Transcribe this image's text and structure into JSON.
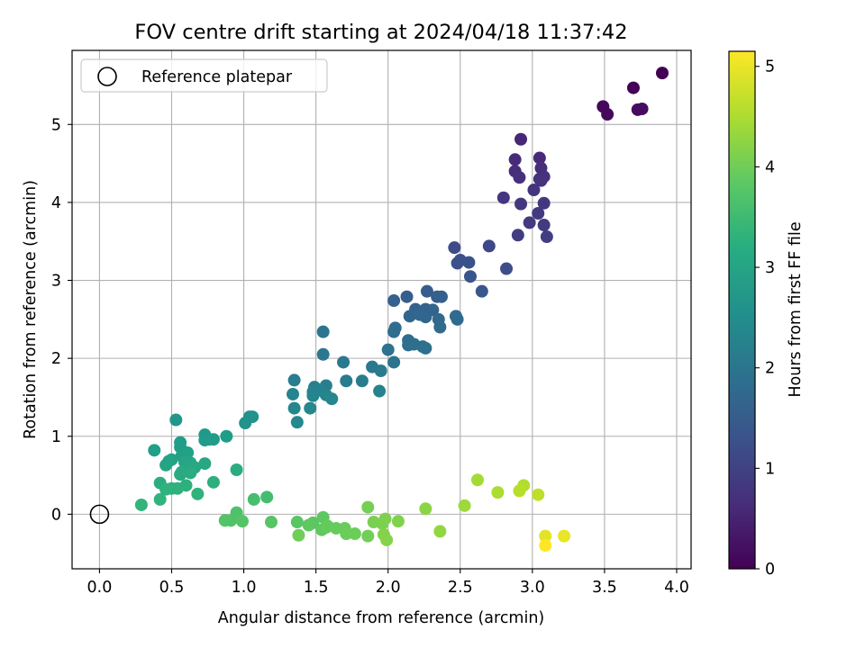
{
  "chart_data": {
    "type": "scatter",
    "title": "FOV centre drift starting at 2024/04/18 11:37:42",
    "xlabel": "Angular distance from reference (arcmin)",
    "ylabel": "Rotation from reference (arcmin)",
    "xlim": [
      -0.19,
      4.1
    ],
    "ylim": [
      -0.7,
      5.95
    ],
    "x_ticks": [
      0.0,
      0.5,
      1.0,
      1.5,
      2.0,
      2.5,
      3.0,
      3.5,
      4.0
    ],
    "x_tick_labels": [
      "0.0",
      "0.5",
      "1.0",
      "1.5",
      "2.0",
      "2.5",
      "3.0",
      "3.5",
      "4.0"
    ],
    "y_ticks": [
      0,
      1,
      2,
      3,
      4,
      5
    ],
    "y_tick_labels": [
      "0",
      "1",
      "2",
      "3",
      "4",
      "5"
    ],
    "grid": true,
    "legend": {
      "placement": "upper-left",
      "entries": [
        "Reference platepar"
      ]
    },
    "reference_point": {
      "x": 0.0,
      "y": 0.0
    },
    "colorbar": {
      "label": "Hours from first FF file",
      "range": [
        0,
        5.15
      ],
      "ticks": [
        0,
        1,
        2,
        3,
        4,
        5
      ],
      "tick_labels": [
        "0",
        "1",
        "2",
        "3",
        "4",
        "5"
      ],
      "colormap": "viridis"
    },
    "points": [
      {
        "x": 3.9,
        "y": 5.66,
        "c": 0.0
      },
      {
        "x": 3.7,
        "y": 5.47,
        "c": 0.05
      },
      {
        "x": 3.49,
        "y": 5.23,
        "c": 0.1
      },
      {
        "x": 3.52,
        "y": 5.13,
        "c": 0.12
      },
      {
        "x": 3.73,
        "y": 5.19,
        "c": 0.15
      },
      {
        "x": 3.76,
        "y": 5.2,
        "c": 0.18
      },
      {
        "x": 2.92,
        "y": 4.81,
        "c": 0.55
      },
      {
        "x": 3.05,
        "y": 4.57,
        "c": 0.6
      },
      {
        "x": 2.88,
        "y": 4.55,
        "c": 0.62
      },
      {
        "x": 3.06,
        "y": 4.44,
        "c": 0.65
      },
      {
        "x": 2.88,
        "y": 4.4,
        "c": 0.68
      },
      {
        "x": 2.91,
        "y": 4.32,
        "c": 0.7
      },
      {
        "x": 3.05,
        "y": 4.3,
        "c": 0.72
      },
      {
        "x": 3.08,
        "y": 4.33,
        "c": 0.74
      },
      {
        "x": 3.06,
        "y": 4.28,
        "c": 0.76
      },
      {
        "x": 3.01,
        "y": 4.16,
        "c": 0.78
      },
      {
        "x": 2.8,
        "y": 4.06,
        "c": 0.8
      },
      {
        "x": 2.92,
        "y": 3.98,
        "c": 0.82
      },
      {
        "x": 3.08,
        "y": 3.99,
        "c": 0.84
      },
      {
        "x": 3.04,
        "y": 3.86,
        "c": 0.86
      },
      {
        "x": 2.98,
        "y": 3.74,
        "c": 0.88
      },
      {
        "x": 3.08,
        "y": 3.71,
        "c": 0.9
      },
      {
        "x": 2.9,
        "y": 3.58,
        "c": 0.92
      },
      {
        "x": 3.1,
        "y": 3.56,
        "c": 0.94
      },
      {
        "x": 2.7,
        "y": 3.44,
        "c": 1.1
      },
      {
        "x": 2.46,
        "y": 3.42,
        "c": 1.15
      },
      {
        "x": 2.82,
        "y": 3.15,
        "c": 1.2
      },
      {
        "x": 2.5,
        "y": 3.26,
        "c": 1.25
      },
      {
        "x": 2.48,
        "y": 3.22,
        "c": 1.28
      },
      {
        "x": 2.56,
        "y": 3.23,
        "c": 1.3
      },
      {
        "x": 2.57,
        "y": 3.05,
        "c": 1.35
      },
      {
        "x": 2.65,
        "y": 2.86,
        "c": 1.4
      },
      {
        "x": 2.27,
        "y": 2.86,
        "c": 1.5
      },
      {
        "x": 2.13,
        "y": 2.79,
        "c": 1.52
      },
      {
        "x": 2.34,
        "y": 2.79,
        "c": 1.54
      },
      {
        "x": 2.37,
        "y": 2.79,
        "c": 1.56
      },
      {
        "x": 2.04,
        "y": 2.74,
        "c": 1.58
      },
      {
        "x": 2.19,
        "y": 2.63,
        "c": 1.6
      },
      {
        "x": 2.26,
        "y": 2.63,
        "c": 1.62
      },
      {
        "x": 2.31,
        "y": 2.62,
        "c": 1.64
      },
      {
        "x": 2.15,
        "y": 2.54,
        "c": 1.66
      },
      {
        "x": 2.22,
        "y": 2.56,
        "c": 1.68
      },
      {
        "x": 2.26,
        "y": 2.53,
        "c": 1.7
      },
      {
        "x": 2.35,
        "y": 2.5,
        "c": 1.72
      },
      {
        "x": 2.48,
        "y": 2.5,
        "c": 1.74
      },
      {
        "x": 2.47,
        "y": 2.54,
        "c": 1.76
      },
      {
        "x": 2.36,
        "y": 2.4,
        "c": 1.78
      },
      {
        "x": 2.05,
        "y": 2.39,
        "c": 1.8
      },
      {
        "x": 2.04,
        "y": 2.34,
        "c": 1.82
      },
      {
        "x": 2.14,
        "y": 2.23,
        "c": 1.84
      },
      {
        "x": 2.14,
        "y": 2.17,
        "c": 1.86
      },
      {
        "x": 2.18,
        "y": 2.18,
        "c": 1.88
      },
      {
        "x": 2.24,
        "y": 2.15,
        "c": 1.9
      },
      {
        "x": 2.26,
        "y": 2.13,
        "c": 1.92
      },
      {
        "x": 2.0,
        "y": 2.11,
        "c": 1.94
      },
      {
        "x": 2.04,
        "y": 1.95,
        "c": 1.96
      },
      {
        "x": 1.55,
        "y": 2.34,
        "c": 2.0
      },
      {
        "x": 1.55,
        "y": 2.05,
        "c": 2.05
      },
      {
        "x": 1.69,
        "y": 1.95,
        "c": 2.08
      },
      {
        "x": 1.89,
        "y": 1.89,
        "c": 2.1
      },
      {
        "x": 1.95,
        "y": 1.84,
        "c": 2.12
      },
      {
        "x": 1.71,
        "y": 1.71,
        "c": 2.14
      },
      {
        "x": 1.82,
        "y": 1.71,
        "c": 2.16
      },
      {
        "x": 1.35,
        "y": 1.72,
        "c": 2.18
      },
      {
        "x": 1.49,
        "y": 1.63,
        "c": 2.2
      },
      {
        "x": 1.57,
        "y": 1.65,
        "c": 2.22
      },
      {
        "x": 1.5,
        "y": 1.61,
        "c": 2.24
      },
      {
        "x": 1.48,
        "y": 1.57,
        "c": 2.26
      },
      {
        "x": 1.53,
        "y": 1.59,
        "c": 2.28
      },
      {
        "x": 1.94,
        "y": 1.58,
        "c": 2.3
      },
      {
        "x": 1.34,
        "y": 1.54,
        "c": 2.32
      },
      {
        "x": 1.48,
        "y": 1.52,
        "c": 2.34
      },
      {
        "x": 1.57,
        "y": 1.53,
        "c": 2.36
      },
      {
        "x": 1.61,
        "y": 1.48,
        "c": 2.38
      },
      {
        "x": 1.35,
        "y": 1.36,
        "c": 2.4
      },
      {
        "x": 1.46,
        "y": 1.36,
        "c": 2.42
      },
      {
        "x": 1.37,
        "y": 1.18,
        "c": 2.44
      },
      {
        "x": 1.04,
        "y": 1.25,
        "c": 2.6
      },
      {
        "x": 1.06,
        "y": 1.25,
        "c": 2.62
      },
      {
        "x": 1.01,
        "y": 1.17,
        "c": 2.64
      },
      {
        "x": 0.53,
        "y": 1.21,
        "c": 2.7
      },
      {
        "x": 0.73,
        "y": 1.02,
        "c": 2.75
      },
      {
        "x": 0.76,
        "y": 0.96,
        "c": 2.78
      },
      {
        "x": 0.73,
        "y": 0.95,
        "c": 2.8
      },
      {
        "x": 0.79,
        "y": 0.96,
        "c": 2.82
      },
      {
        "x": 0.88,
        "y": 1.0,
        "c": 2.84
      },
      {
        "x": 0.56,
        "y": 0.92,
        "c": 2.86
      },
      {
        "x": 0.56,
        "y": 0.86,
        "c": 2.88
      },
      {
        "x": 0.38,
        "y": 0.82,
        "c": 2.9
      },
      {
        "x": 0.61,
        "y": 0.79,
        "c": 2.92
      },
      {
        "x": 0.57,
        "y": 0.75,
        "c": 2.94
      },
      {
        "x": 0.5,
        "y": 0.7,
        "c": 2.96
      },
      {
        "x": 0.48,
        "y": 0.68,
        "c": 2.98
      },
      {
        "x": 0.46,
        "y": 0.63,
        "c": 3.0
      },
      {
        "x": 0.59,
        "y": 0.67,
        "c": 3.02
      },
      {
        "x": 0.63,
        "y": 0.66,
        "c": 3.04
      },
      {
        "x": 0.73,
        "y": 0.65,
        "c": 3.06
      },
      {
        "x": 0.66,
        "y": 0.6,
        "c": 3.08
      },
      {
        "x": 0.61,
        "y": 0.56,
        "c": 3.1
      },
      {
        "x": 0.57,
        "y": 0.54,
        "c": 3.12
      },
      {
        "x": 0.56,
        "y": 0.51,
        "c": 3.14
      },
      {
        "x": 0.63,
        "y": 0.53,
        "c": 3.16
      },
      {
        "x": 0.95,
        "y": 0.57,
        "c": 3.18
      },
      {
        "x": 0.42,
        "y": 0.4,
        "c": 3.2
      },
      {
        "x": 0.79,
        "y": 0.41,
        "c": 3.22
      },
      {
        "x": 0.6,
        "y": 0.37,
        "c": 3.24
      },
      {
        "x": 0.5,
        "y": 0.33,
        "c": 3.26
      },
      {
        "x": 0.54,
        "y": 0.33,
        "c": 3.28
      },
      {
        "x": 0.46,
        "y": 0.32,
        "c": 3.3
      },
      {
        "x": 0.68,
        "y": 0.26,
        "c": 3.32
      },
      {
        "x": 0.42,
        "y": 0.19,
        "c": 3.34
      },
      {
        "x": 0.29,
        "y": 0.12,
        "c": 3.36
      },
      {
        "x": 1.16,
        "y": 0.22,
        "c": 3.6
      },
      {
        "x": 1.07,
        "y": 0.19,
        "c": 3.62
      },
      {
        "x": 0.95,
        "y": 0.02,
        "c": 3.7
      },
      {
        "x": 0.91,
        "y": -0.08,
        "c": 3.72
      },
      {
        "x": 0.87,
        "y": -0.08,
        "c": 3.74
      },
      {
        "x": 0.99,
        "y": -0.09,
        "c": 3.76
      },
      {
        "x": 1.19,
        "y": -0.1,
        "c": 3.78
      },
      {
        "x": 1.37,
        "y": -0.1,
        "c": 3.8
      },
      {
        "x": 1.48,
        "y": -0.11,
        "c": 3.82
      },
      {
        "x": 1.55,
        "y": -0.04,
        "c": 3.84
      },
      {
        "x": 1.45,
        "y": -0.14,
        "c": 3.86
      },
      {
        "x": 1.54,
        "y": -0.2,
        "c": 3.88
      },
      {
        "x": 1.57,
        "y": -0.17,
        "c": 3.9
      },
      {
        "x": 1.58,
        "y": -0.15,
        "c": 3.92
      },
      {
        "x": 1.64,
        "y": -0.18,
        "c": 3.94
      },
      {
        "x": 1.7,
        "y": -0.18,
        "c": 3.96
      },
      {
        "x": 1.71,
        "y": -0.25,
        "c": 3.98
      },
      {
        "x": 1.77,
        "y": -0.25,
        "c": 4.0
      },
      {
        "x": 1.38,
        "y": -0.27,
        "c": 4.02
      },
      {
        "x": 1.86,
        "y": -0.28,
        "c": 4.04
      },
      {
        "x": 1.86,
        "y": 0.09,
        "c": 4.06
      },
      {
        "x": 1.9,
        "y": -0.1,
        "c": 4.1
      },
      {
        "x": 1.96,
        "y": -0.12,
        "c": 4.12
      },
      {
        "x": 1.98,
        "y": -0.06,
        "c": 4.14
      },
      {
        "x": 2.07,
        "y": -0.09,
        "c": 4.16
      },
      {
        "x": 1.97,
        "y": -0.26,
        "c": 4.18
      },
      {
        "x": 1.99,
        "y": -0.33,
        "c": 4.2
      },
      {
        "x": 2.26,
        "y": 0.07,
        "c": 4.25
      },
      {
        "x": 2.36,
        "y": -0.22,
        "c": 4.3
      },
      {
        "x": 2.53,
        "y": 0.11,
        "c": 4.4
      },
      {
        "x": 2.62,
        "y": 0.44,
        "c": 4.45
      },
      {
        "x": 2.76,
        "y": 0.28,
        "c": 4.5
      },
      {
        "x": 2.94,
        "y": 0.37,
        "c": 4.55
      },
      {
        "x": 2.91,
        "y": 0.3,
        "c": 4.6
      },
      {
        "x": 3.04,
        "y": 0.25,
        "c": 4.65
      },
      {
        "x": 3.09,
        "y": -0.28,
        "c": 4.95
      },
      {
        "x": 3.22,
        "y": -0.28,
        "c": 5.0
      },
      {
        "x": 3.09,
        "y": -0.4,
        "c": 5.15
      }
    ]
  }
}
